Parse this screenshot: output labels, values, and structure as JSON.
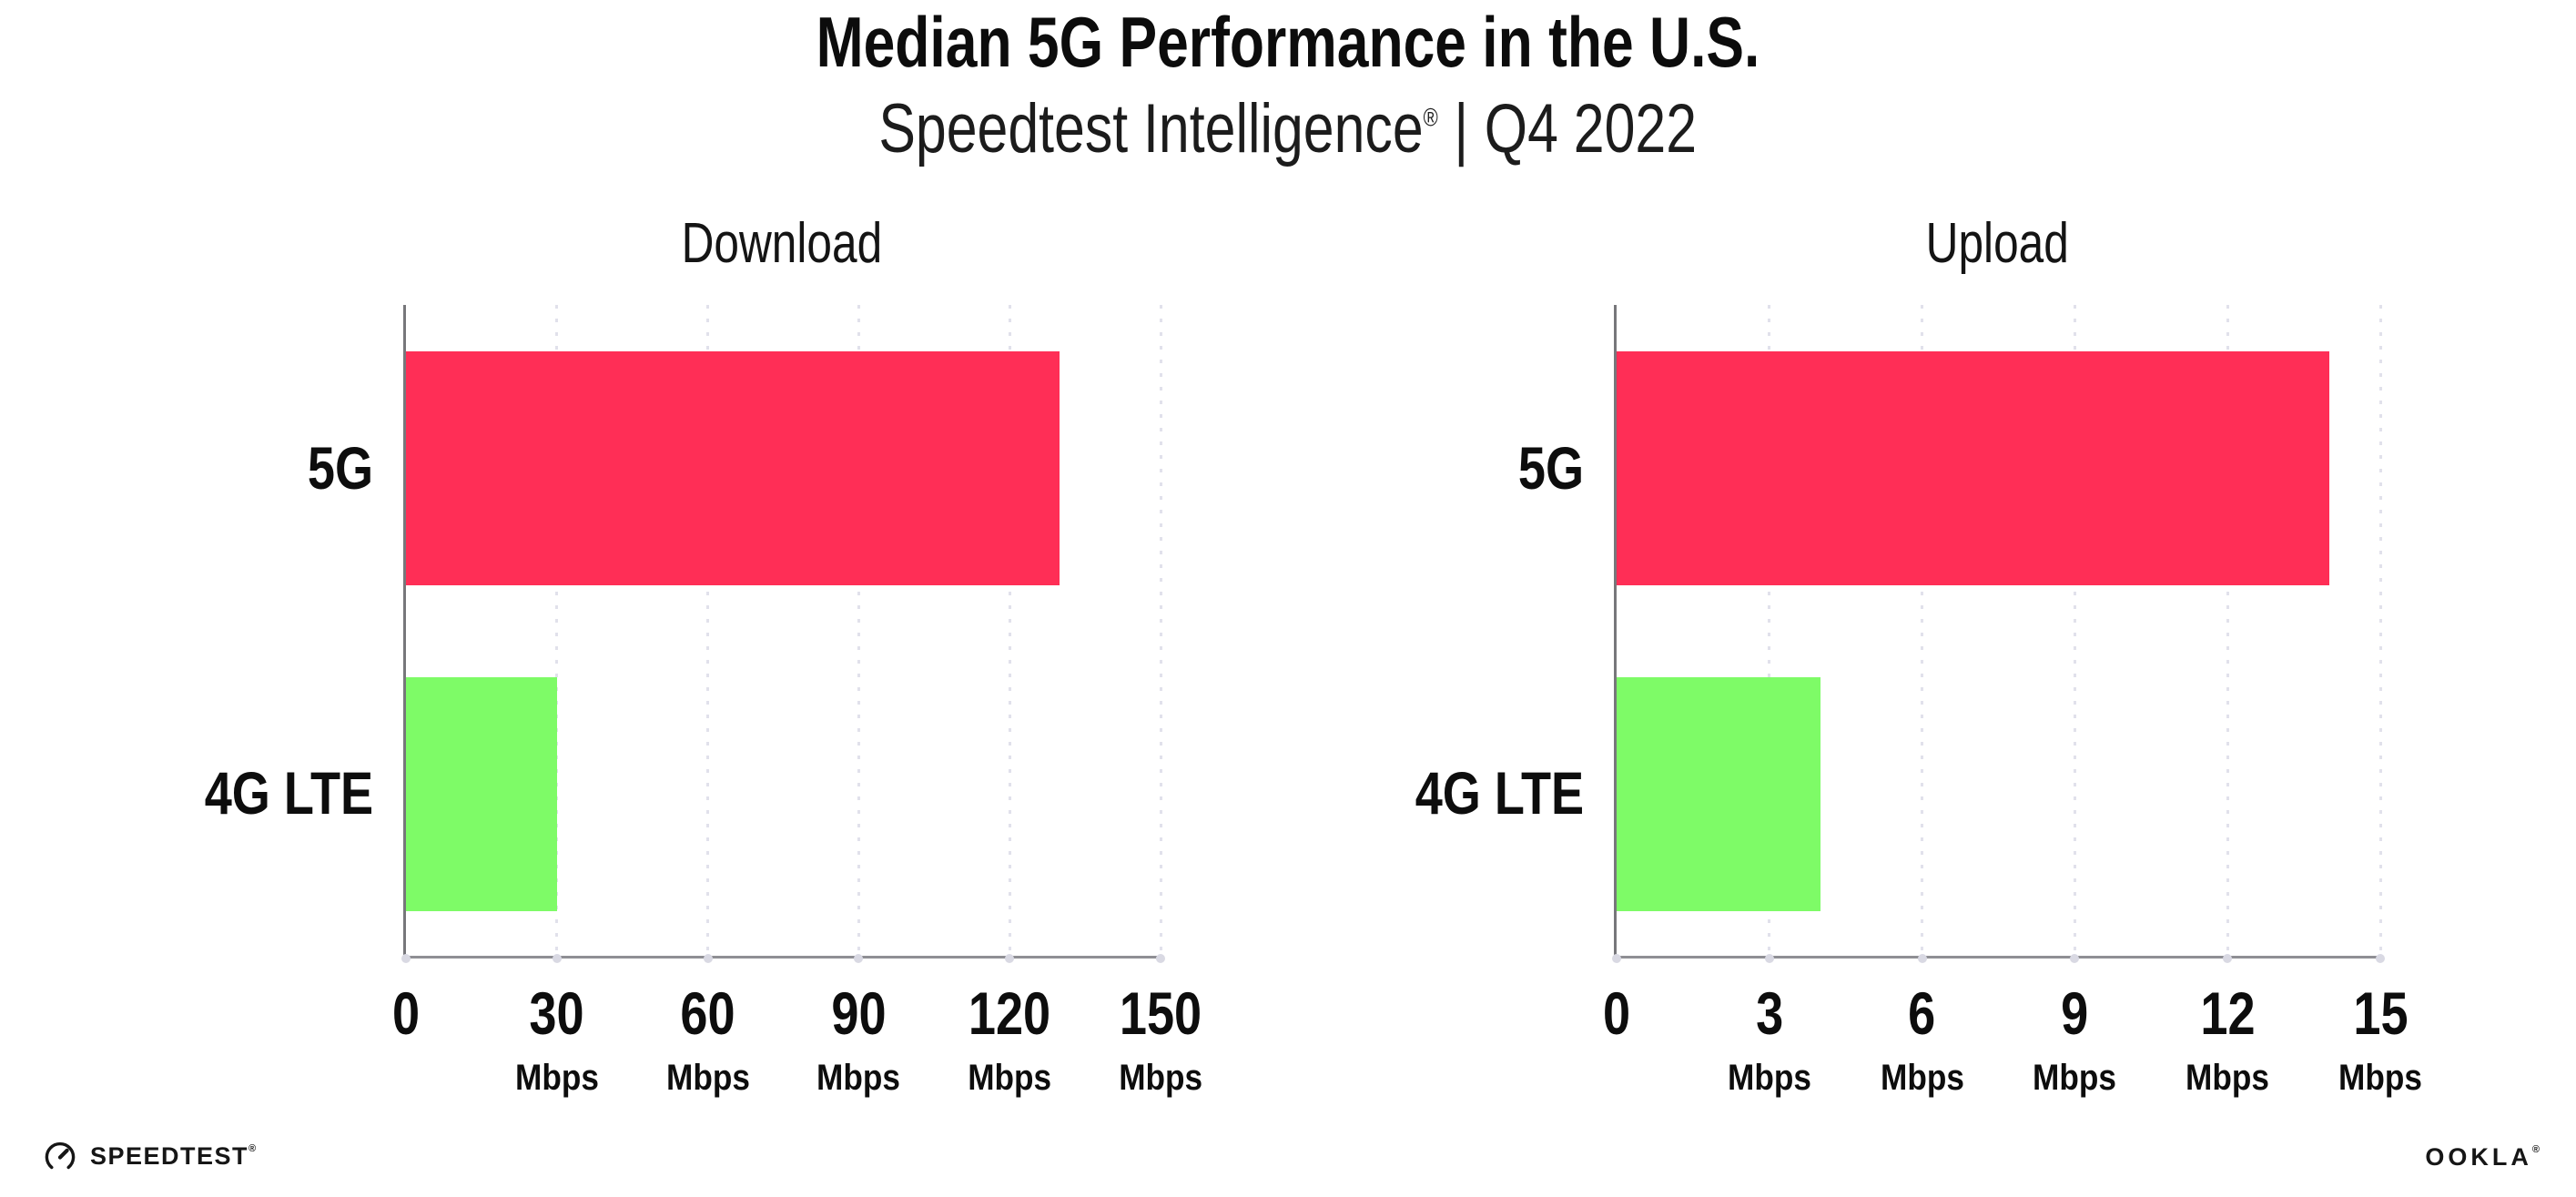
{
  "header": {
    "title": "Median 5G Performance in the U.S.",
    "subtitle_brand": "Speedtest Intelligence",
    "subtitle_reg": "®",
    "subtitle_separator": "|",
    "subtitle_period": "Q4 2022"
  },
  "chart_data": [
    {
      "type": "bar",
      "orientation": "horizontal",
      "title": "Download",
      "categories": [
        "5G",
        "4G LTE"
      ],
      "values": [
        130,
        30
      ],
      "unit": "Mbps",
      "xlim": [
        0,
        150
      ],
      "xticks": [
        0,
        30,
        60,
        90,
        120,
        150
      ],
      "bar_colors": [
        "#FF2E56",
        "#7EFB67"
      ],
      "grid": "vertical-dotted",
      "legend": false
    },
    {
      "type": "bar",
      "orientation": "horizontal",
      "title": "Upload",
      "categories": [
        "5G",
        "4G LTE"
      ],
      "values": [
        14,
        4
      ],
      "unit": "Mbps",
      "xlim": [
        0,
        15
      ],
      "xticks": [
        0,
        3,
        6,
        9,
        12,
        15
      ],
      "bar_colors": [
        "#FF2E56",
        "#7EFB67"
      ],
      "grid": "vertical-dotted",
      "legend": false
    }
  ],
  "footer": {
    "left_logo": "SPEEDTEST",
    "left_logo_mark": "®",
    "right_logo": "OOKLA",
    "right_logo_mark": "®"
  },
  "icons": {
    "speedtest_gauge_icon": "open circular gauge with needle pointing upper-right"
  },
  "colors": {
    "bar_5g": "#FF2E56",
    "bar_4g_lte": "#7EFB67",
    "axis": "#77777B",
    "gridline": "#E1E1EB",
    "text": "#111111",
    "background": "#FFFFFF"
  }
}
